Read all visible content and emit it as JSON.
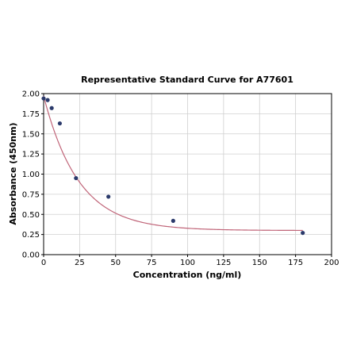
{
  "chart_data": {
    "type": "scatter",
    "title": "Representative Standard Curve for A77601",
    "xlabel": "Concentration (ng/ml)",
    "ylabel": "Absorbance (450nm)",
    "xlim": [
      0,
      200
    ],
    "ylim": [
      0,
      2.0
    ],
    "x_ticks": [
      0,
      25,
      50,
      75,
      100,
      125,
      150,
      175,
      200
    ],
    "y_ticks": [
      0.0,
      0.25,
      0.5,
      0.75,
      1.0,
      1.25,
      1.5,
      1.75,
      2.0
    ],
    "x_tick_labels": [
      "0",
      "25",
      "50",
      "75",
      "100",
      "125",
      "150",
      "175",
      "200"
    ],
    "y_tick_labels": [
      "0.00",
      "0.25",
      "0.50",
      "0.75",
      "1.00",
      "1.25",
      "1.50",
      "1.75",
      "2.00"
    ],
    "grid": true,
    "series": [
      {
        "kind": "points",
        "color": "#2b3a6b",
        "x": [
          0,
          2.8,
          5.6,
          11.25,
          22.5,
          45,
          90,
          180
        ],
        "y": [
          1.94,
          1.92,
          1.82,
          1.63,
          0.95,
          0.72,
          0.42,
          0.27
        ]
      },
      {
        "kind": "fit-curve",
        "color": "#c06478",
        "model": {
          "bottom": 0.3,
          "span": 1.67,
          "rate": 0.041
        }
      }
    ]
  },
  "colors": {
    "points": "#2b3a6b",
    "curve": "#c06478",
    "grid": "#d0d0d0",
    "axis": "#000000"
  }
}
